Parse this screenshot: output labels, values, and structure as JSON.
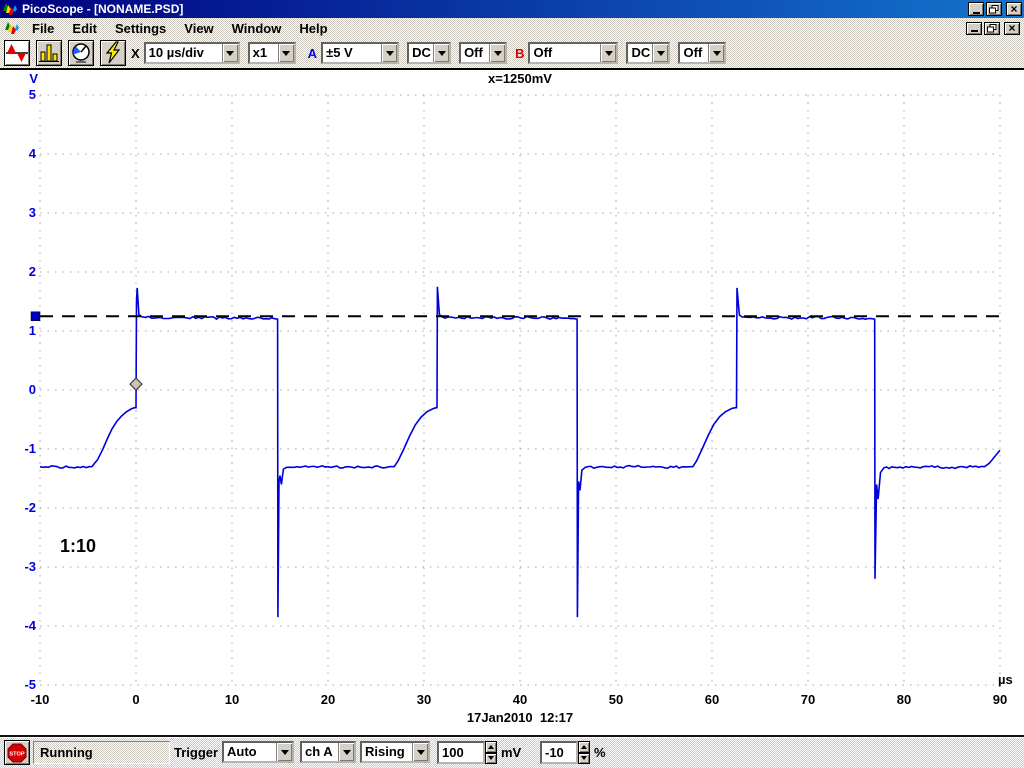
{
  "window": {
    "title": "PicoScope - [NONAME.PSD]"
  },
  "menu": {
    "items": [
      "File",
      "Edit",
      "Settings",
      "View",
      "Window",
      "Help"
    ]
  },
  "toolbar": {
    "multiplier_label": "X",
    "timebase": "10 µs/div",
    "zoom": "x1",
    "channel_a_label": "A",
    "range_a": "±5 V",
    "coupling_a": "DC",
    "mode_a": "Off",
    "channel_b_label": "B",
    "range_b": "Off",
    "coupling_b": "DC",
    "mode_b": "Off"
  },
  "statusbar": {
    "stop_icon_text": "STOP",
    "running": "Running",
    "trigger_label": "Trigger",
    "trigger_mode": "Auto",
    "trigger_channel": "ch A",
    "trigger_edge": "Rising",
    "trigger_threshold": "100",
    "threshold_unit": "mV",
    "trigger_delay": "-10",
    "delay_unit": "%"
  },
  "icons": {
    "app": "waveform-logo-icon",
    "toolbar": [
      "scope-view-icon",
      "spectrum-view-icon",
      "meter-view-icon",
      "trigger-lightning-icon"
    ],
    "status": "stop-sign-icon"
  },
  "colors": {
    "trace": "#0000dd",
    "axis_label_blue": "#0000dd",
    "grid": "#a6a6a6",
    "cursor_line": "#000000",
    "cursor_handle": "#0000bb",
    "titlebar_left": "#000080",
    "titlebar_right": "#1474cc",
    "channel_a": "#0000ee",
    "channel_b": "#e00000"
  },
  "chart_data": {
    "type": "line",
    "title": "x=1250mV",
    "y_unit": "V",
    "x_unit": "µs",
    "timestamp": "17Jan2010  12:17",
    "probe_label": "1:10",
    "xlim": [
      -10,
      90
    ],
    "ylim": [
      -5,
      5
    ],
    "x_ticks": [
      -10,
      0,
      10,
      20,
      30,
      40,
      50,
      60,
      70,
      80,
      90
    ],
    "y_ticks": [
      5,
      4,
      3,
      2,
      1,
      0,
      -1,
      -2,
      -3,
      -4,
      -5
    ],
    "grid": "dotted",
    "cursor": {
      "v": 1.25
    },
    "trigger_marker": {
      "t": 0,
      "v": 0.1
    },
    "series": [
      {
        "name": "ch A",
        "points": [
          [
            -10,
            -1.3
          ],
          [
            -7,
            -1.31
          ],
          [
            -4.6,
            -1.3
          ],
          [
            -4.5,
            -1.28
          ],
          [
            -4.0,
            -1.18
          ],
          [
            -3.5,
            -1.02
          ],
          [
            -3.0,
            -0.83
          ],
          [
            -2.5,
            -0.66
          ],
          [
            -2.0,
            -0.53
          ],
          [
            -1.5,
            -0.44
          ],
          [
            -1.0,
            -0.37
          ],
          [
            -0.5,
            -0.32
          ],
          [
            -0.15,
            -0.3
          ],
          [
            0,
            -0.3
          ],
          [
            0.05,
            1.5
          ],
          [
            0.12,
            1.73
          ],
          [
            0.3,
            1.28
          ],
          [
            0.6,
            1.24
          ],
          [
            1.0,
            1.23
          ],
          [
            5,
            1.23
          ],
          [
            9,
            1.22
          ],
          [
            13,
            1.22
          ],
          [
            14.4,
            1.21
          ],
          [
            14.75,
            1.2
          ],
          [
            14.78,
            -3.85
          ],
          [
            14.9,
            -1.55
          ],
          [
            15.0,
            -1.45
          ],
          [
            15.15,
            -1.6
          ],
          [
            15.35,
            -1.34
          ],
          [
            15.7,
            -1.31
          ],
          [
            16.5,
            -1.31
          ],
          [
            20,
            -1.3
          ],
          [
            24,
            -1.31
          ],
          [
            26.9,
            -1.3
          ],
          [
            27.3,
            -1.2
          ],
          [
            27.9,
            -1.0
          ],
          [
            28.5,
            -0.78
          ],
          [
            29.1,
            -0.59
          ],
          [
            29.7,
            -0.46
          ],
          [
            30.3,
            -0.37
          ],
          [
            30.9,
            -0.32
          ],
          [
            31.25,
            -0.3
          ],
          [
            31.35,
            -0.3
          ],
          [
            31.4,
            1.75
          ],
          [
            31.6,
            1.28
          ],
          [
            31.9,
            1.24
          ],
          [
            33,
            1.23
          ],
          [
            37,
            1.22
          ],
          [
            41,
            1.23
          ],
          [
            45.6,
            1.21
          ],
          [
            45.95,
            1.2
          ],
          [
            45.98,
            -3.85
          ],
          [
            46.1,
            -1.55
          ],
          [
            46.25,
            -1.7
          ],
          [
            46.45,
            -1.36
          ],
          [
            46.8,
            -1.31
          ],
          [
            48,
            -1.31
          ],
          [
            52,
            -1.3
          ],
          [
            56,
            -1.31
          ],
          [
            58.0,
            -1.3
          ],
          [
            58.4,
            -1.2
          ],
          [
            59.0,
            -0.99
          ],
          [
            59.6,
            -0.77
          ],
          [
            60.2,
            -0.58
          ],
          [
            60.8,
            -0.45
          ],
          [
            61.4,
            -0.37
          ],
          [
            62.1,
            -0.31
          ],
          [
            62.45,
            -0.3
          ],
          [
            62.55,
            -0.3
          ],
          [
            62.6,
            1.73
          ],
          [
            62.85,
            1.27
          ],
          [
            63.1,
            1.24
          ],
          [
            64,
            1.23
          ],
          [
            68,
            1.22
          ],
          [
            72,
            1.23
          ],
          [
            76.6,
            1.21
          ],
          [
            76.95,
            1.2
          ],
          [
            76.98,
            -3.2
          ],
          [
            77.15,
            -1.6
          ],
          [
            77.3,
            -1.85
          ],
          [
            77.55,
            -1.4
          ],
          [
            77.9,
            -1.32
          ],
          [
            79,
            -1.31
          ],
          [
            82,
            -1.3
          ],
          [
            85,
            -1.31
          ],
          [
            88.4,
            -1.3
          ],
          [
            88.9,
            -1.24
          ],
          [
            89.4,
            -1.14
          ],
          [
            89.8,
            -1.06
          ],
          [
            90,
            -1.02
          ]
        ]
      }
    ]
  }
}
